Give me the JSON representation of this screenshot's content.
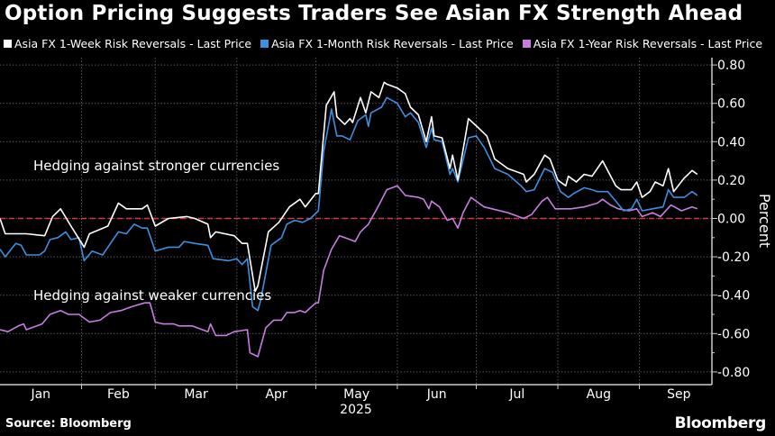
{
  "title": "Option Pricing Suggests Traders See Asian FX Strength Ahead",
  "source": "Source: Bloomberg",
  "logo": "Bloomberg",
  "chart_data": {
    "type": "line",
    "title": "Option Pricing Suggests Traders See Asian FX Strength Ahead",
    "xlabel": "2025",
    "ylabel": "Percent",
    "ylim": [
      -0.8,
      0.8
    ],
    "y_ticks": [
      "0.80",
      "0.60",
      "0.40",
      "0.20",
      "0.00",
      "-0.20",
      "-0.40",
      "-0.60",
      "-0.80"
    ],
    "y_tick_values": [
      0.8,
      0.6,
      0.4,
      0.2,
      0,
      -0.2,
      -0.4,
      -0.6,
      -0.8
    ],
    "x_unit": "day of year 2025",
    "xlim": [
      0,
      270
    ],
    "months": [
      {
        "label": "Jan",
        "start": 0
      },
      {
        "label": "Feb",
        "start": 31
      },
      {
        "label": "Mar",
        "start": 59
      },
      {
        "label": "Apr",
        "start": 90
      },
      {
        "label": "May",
        "start": 120
      },
      {
        "label": "Jun",
        "start": 151
      },
      {
        "label": "Jul",
        "start": 181
      },
      {
        "label": "Aug",
        "start": 212
      },
      {
        "label": "Sep",
        "start": 243
      }
    ],
    "year_label": "2025",
    "reference_line": {
      "value": 0,
      "color": "#e0323f",
      "style": "dashed"
    },
    "grid": true,
    "legend_position": "top",
    "annotations": [
      "Hedging against stronger currencies",
      "Hedging against weaker currencies"
    ],
    "annotation_values": [
      0.27,
      -0.4
    ],
    "series": [
      {
        "name": "Asia FX 1-Week Risk Reversals - Last Price",
        "color": "#ffffff",
        "points": [
          [
            0,
            0.0
          ],
          [
            2,
            -0.08
          ],
          [
            10,
            -0.08
          ],
          [
            17,
            -0.09
          ],
          [
            20,
            0.01
          ],
          [
            23,
            0.05
          ],
          [
            27,
            -0.04
          ],
          [
            32,
            -0.15
          ],
          [
            34,
            -0.08
          ],
          [
            41,
            -0.04
          ],
          [
            45,
            0.08
          ],
          [
            48,
            0.05
          ],
          [
            54,
            0.05
          ],
          [
            56,
            0.07
          ],
          [
            59,
            -0.04
          ],
          [
            64,
            0.0
          ],
          [
            71,
            0.01
          ],
          [
            74,
            0.0
          ],
          [
            79,
            -0.03
          ],
          [
            80,
            -0.1
          ],
          [
            82,
            -0.07
          ],
          [
            89,
            -0.09
          ],
          [
            92,
            -0.13
          ],
          [
            94,
            -0.13
          ],
          [
            97,
            -0.38
          ],
          [
            98,
            -0.35
          ],
          [
            102,
            -0.07
          ],
          [
            106,
            -0.02
          ],
          [
            110,
            0.06
          ],
          [
            114,
            0.1
          ],
          [
            116,
            0.06
          ],
          [
            120,
            0.13
          ],
          [
            121,
            0.13
          ],
          [
            124,
            0.59
          ],
          [
            127,
            0.66
          ],
          [
            128,
            0.53
          ],
          [
            131,
            0.49
          ],
          [
            133,
            0.52
          ],
          [
            134,
            0.5
          ],
          [
            137,
            0.63
          ],
          [
            139,
            0.55
          ],
          [
            141,
            0.66
          ],
          [
            144,
            0.63
          ],
          [
            146,
            0.71
          ],
          [
            147,
            0.7
          ],
          [
            151,
            0.68
          ],
          [
            154,
            0.65
          ],
          [
            156,
            0.58
          ],
          [
            159,
            0.54
          ],
          [
            162,
            0.4
          ],
          [
            164,
            0.53
          ],
          [
            165,
            0.43
          ],
          [
            168,
            0.42
          ],
          [
            171,
            0.26
          ],
          [
            172,
            0.33
          ],
          [
            174,
            0.2
          ],
          [
            178,
            0.52
          ],
          [
            182,
            0.47
          ],
          [
            185,
            0.43
          ],
          [
            188,
            0.31
          ],
          [
            193,
            0.26
          ],
          [
            199,
            0.23
          ],
          [
            200,
            0.19
          ],
          [
            203,
            0.23
          ],
          [
            207,
            0.33
          ],
          [
            209,
            0.31
          ],
          [
            212,
            0.2
          ],
          [
            215,
            0.17
          ],
          [
            216,
            0.22
          ],
          [
            219,
            0.19
          ],
          [
            222,
            0.23
          ],
          [
            225,
            0.22
          ],
          [
            229,
            0.3
          ],
          [
            234,
            0.17
          ],
          [
            236,
            0.15
          ],
          [
            240,
            0.15
          ],
          [
            242,
            0.19
          ],
          [
            244,
            0.11
          ],
          [
            247,
            0.14
          ],
          [
            249,
            0.19
          ],
          [
            252,
            0.17
          ],
          [
            254,
            0.26
          ],
          [
            256,
            0.14
          ],
          [
            260,
            0.21
          ],
          [
            263,
            0.25
          ],
          [
            265,
            0.23
          ]
        ]
      },
      {
        "name": "Asia FX 1-Month Risk Reversals - Last Price",
        "color": "#3d8fe0",
        "points": [
          [
            0,
            -0.16
          ],
          [
            2,
            -0.2
          ],
          [
            6,
            -0.13
          ],
          [
            8,
            -0.14
          ],
          [
            10,
            -0.19
          ],
          [
            15,
            -0.19
          ],
          [
            17,
            -0.17
          ],
          [
            19,
            -0.11
          ],
          [
            22,
            -0.1
          ],
          [
            25,
            -0.07
          ],
          [
            27,
            -0.11
          ],
          [
            30,
            -0.1
          ],
          [
            32,
            -0.22
          ],
          [
            35,
            -0.17
          ],
          [
            39,
            -0.19
          ],
          [
            42,
            -0.13
          ],
          [
            45,
            -0.07
          ],
          [
            48,
            -0.08
          ],
          [
            51,
            -0.03
          ],
          [
            54,
            -0.05
          ],
          [
            56,
            -0.05
          ],
          [
            59,
            -0.17
          ],
          [
            64,
            -0.15
          ],
          [
            68,
            -0.15
          ],
          [
            70,
            -0.12
          ],
          [
            74,
            -0.13
          ],
          [
            79,
            -0.14
          ],
          [
            81,
            -0.21
          ],
          [
            87,
            -0.22
          ],
          [
            90,
            -0.21
          ],
          [
            92,
            -0.24
          ],
          [
            94,
            -0.21
          ],
          [
            96,
            -0.46
          ],
          [
            98,
            -0.48
          ],
          [
            99,
            -0.43
          ],
          [
            103,
            -0.14
          ],
          [
            107,
            -0.1
          ],
          [
            109,
            -0.03
          ],
          [
            112,
            -0.01
          ],
          [
            115,
            -0.02
          ],
          [
            118,
            0.0
          ],
          [
            121,
            0.04
          ],
          [
            123,
            0.35
          ],
          [
            126,
            0.57
          ],
          [
            128,
            0.43
          ],
          [
            130,
            0.43
          ],
          [
            133,
            0.41
          ],
          [
            136,
            0.51
          ],
          [
            139,
            0.54
          ],
          [
            140,
            0.48
          ],
          [
            141,
            0.55
          ],
          [
            145,
            0.58
          ],
          [
            147,
            0.63
          ],
          [
            151,
            0.6
          ],
          [
            154,
            0.53
          ],
          [
            156,
            0.55
          ],
          [
            159,
            0.5
          ],
          [
            162,
            0.37
          ],
          [
            164,
            0.47
          ],
          [
            165,
            0.41
          ],
          [
            168,
            0.4
          ],
          [
            171,
            0.23
          ],
          [
            172,
            0.26
          ],
          [
            174,
            0.19
          ],
          [
            178,
            0.42
          ],
          [
            181,
            0.43
          ],
          [
            184,
            0.37
          ],
          [
            188,
            0.26
          ],
          [
            193,
            0.23
          ],
          [
            198,
            0.17
          ],
          [
            200,
            0.14
          ],
          [
            203,
            0.15
          ],
          [
            207,
            0.26
          ],
          [
            210,
            0.24
          ],
          [
            213,
            0.14
          ],
          [
            216,
            0.11
          ],
          [
            218,
            0.13
          ],
          [
            222,
            0.16
          ],
          [
            225,
            0.15
          ],
          [
            227,
            0.14
          ],
          [
            231,
            0.14
          ],
          [
            234,
            0.09
          ],
          [
            237,
            0.04
          ],
          [
            240,
            0.05
          ],
          [
            242,
            0.1
          ],
          [
            244,
            0.04
          ],
          [
            248,
            0.05
          ],
          [
            252,
            0.06
          ],
          [
            254,
            0.15
          ],
          [
            256,
            0.11
          ],
          [
            260,
            0.11
          ],
          [
            263,
            0.14
          ],
          [
            265,
            0.12
          ]
        ]
      },
      {
        "name": "Asia FX 1-Year Risk Reversals - Last Price",
        "color": "#c77ddf",
        "points": [
          [
            0,
            -0.58
          ],
          [
            3,
            -0.59
          ],
          [
            7,
            -0.56
          ],
          [
            9,
            -0.55
          ],
          [
            10,
            -0.58
          ],
          [
            14,
            -0.56
          ],
          [
            16,
            -0.55
          ],
          [
            19,
            -0.5
          ],
          [
            23,
            -0.48
          ],
          [
            26,
            -0.5
          ],
          [
            30,
            -0.5
          ],
          [
            34,
            -0.54
          ],
          [
            38,
            -0.53
          ],
          [
            42,
            -0.49
          ],
          [
            46,
            -0.48
          ],
          [
            50,
            -0.46
          ],
          [
            55,
            -0.44
          ],
          [
            57,
            -0.44
          ],
          [
            59,
            -0.54
          ],
          [
            62,
            -0.55
          ],
          [
            66,
            -0.55
          ],
          [
            68,
            -0.56
          ],
          [
            73,
            -0.56
          ],
          [
            79,
            -0.59
          ],
          [
            80,
            -0.55
          ],
          [
            82,
            -0.61
          ],
          [
            86,
            -0.61
          ],
          [
            89,
            -0.59
          ],
          [
            94,
            -0.58
          ],
          [
            95,
            -0.7
          ],
          [
            98,
            -0.72
          ],
          [
            101,
            -0.57
          ],
          [
            104,
            -0.53
          ],
          [
            107,
            -0.53
          ],
          [
            109,
            -0.49
          ],
          [
            112,
            -0.49
          ],
          [
            114,
            -0.48
          ],
          [
            116,
            -0.49
          ],
          [
            120,
            -0.44
          ],
          [
            121,
            -0.44
          ],
          [
            123,
            -0.27
          ],
          [
            126,
            -0.16
          ],
          [
            129,
            -0.09
          ],
          [
            131,
            -0.1
          ],
          [
            135,
            -0.12
          ],
          [
            137,
            -0.07
          ],
          [
            140,
            -0.03
          ],
          [
            144,
            0.07
          ],
          [
            147,
            0.15
          ],
          [
            151,
            0.17
          ],
          [
            154,
            0.12
          ],
          [
            159,
            0.11
          ],
          [
            161,
            0.1
          ],
          [
            163,
            0.05
          ],
          [
            164,
            0.09
          ],
          [
            167,
            0.06
          ],
          [
            170,
            -0.01
          ],
          [
            172,
            0.0
          ],
          [
            174,
            -0.05
          ],
          [
            176,
            0.03
          ],
          [
            179,
            0.11
          ],
          [
            182,
            0.08
          ],
          [
            184,
            0.06
          ],
          [
            187,
            0.05
          ],
          [
            193,
            0.03
          ],
          [
            195,
            0.02
          ],
          [
            199,
            0.0
          ],
          [
            202,
            0.02
          ],
          [
            206,
            0.09
          ],
          [
            208,
            0.11
          ],
          [
            211,
            0.05
          ],
          [
            217,
            0.05
          ],
          [
            222,
            0.06
          ],
          [
            227,
            0.08
          ],
          [
            229,
            0.1
          ],
          [
            232,
            0.07
          ],
          [
            235,
            0.05
          ],
          [
            239,
            0.04
          ],
          [
            242,
            0.05
          ],
          [
            244,
            0.01
          ],
          [
            248,
            0.03
          ],
          [
            251,
            0.01
          ],
          [
            255,
            0.07
          ],
          [
            259,
            0.04
          ],
          [
            263,
            0.06
          ],
          [
            265,
            0.05
          ]
        ]
      }
    ]
  }
}
